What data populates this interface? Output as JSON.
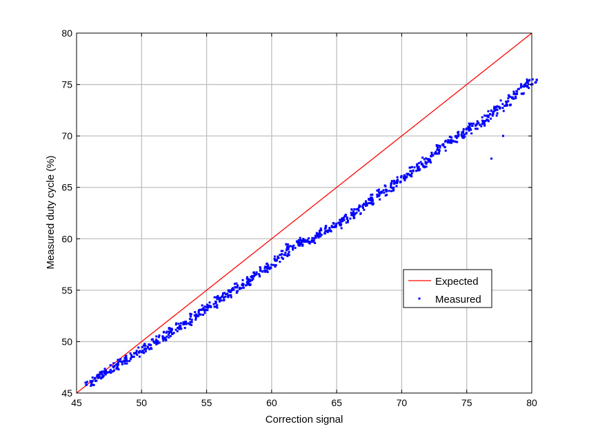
{
  "chart_data": {
    "type": "scatter",
    "title": "",
    "xlabel": "Correction signal",
    "ylabel": "Measured duty cycle (%)",
    "xlim": [
      45,
      80
    ],
    "ylim": [
      45,
      80
    ],
    "xticks": [
      45,
      50,
      55,
      60,
      65,
      70,
      75,
      80
    ],
    "yticks": [
      45,
      50,
      55,
      60,
      65,
      70,
      75,
      80
    ],
    "grid": true,
    "legend_position": "lower-right",
    "series": [
      {
        "name": "Expected",
        "kind": "line",
        "color": "#ff0000",
        "x": [
          45,
          80
        ],
        "y": [
          45,
          80
        ]
      },
      {
        "name": "Measured",
        "kind": "markers",
        "color": "#0000ff",
        "x": [
          46.0,
          46.5,
          47.0,
          47.5,
          48.0,
          48.5,
          49.0,
          49.5,
          50.0,
          50.5,
          51.0,
          51.5,
          52.0,
          52.5,
          53.0,
          53.5,
          54.0,
          54.5,
          55.0,
          55.5,
          56.0,
          56.5,
          57.0,
          57.5,
          58.0,
          58.5,
          59.0,
          59.5,
          60.0,
          60.5,
          61.0,
          61.5,
          62.0,
          62.5,
          63.0,
          63.5,
          64.0,
          64.5,
          65.0,
          65.5,
          66.0,
          66.5,
          67.0,
          67.5,
          68.0,
          68.5,
          69.0,
          69.5,
          70.0,
          70.5,
          71.0,
          71.5,
          72.0,
          72.5,
          73.0,
          73.5,
          74.0,
          74.5,
          75.0,
          75.5,
          76.0,
          76.5,
          77.0,
          77.5,
          78.0,
          78.5,
          79.0,
          79.5,
          80.0,
          76.9,
          77.8
        ],
        "y": [
          46.0,
          46.4,
          46.8,
          47.2,
          47.6,
          48.0,
          48.4,
          48.8,
          49.2,
          49.5,
          50.0,
          50.3,
          50.7,
          51.1,
          51.5,
          51.9,
          52.4,
          52.8,
          53.3,
          53.6,
          54.2,
          54.6,
          55.0,
          55.4,
          55.7,
          56.1,
          56.6,
          57.0,
          57.3,
          58.0,
          58.6,
          59.2,
          59.6,
          59.8,
          59.8,
          60.3,
          60.7,
          61.0,
          61.3,
          61.8,
          62.2,
          62.6,
          63.1,
          63.6,
          64.0,
          64.5,
          64.9,
          65.4,
          65.8,
          66.3,
          66.8,
          67.2,
          67.6,
          68.2,
          68.8,
          69.3,
          69.7,
          70.1,
          70.5,
          70.9,
          71.2,
          71.7,
          72.2,
          72.7,
          73.2,
          73.8,
          74.3,
          74.8,
          75.3,
          67.8,
          70.0
        ]
      }
    ]
  }
}
